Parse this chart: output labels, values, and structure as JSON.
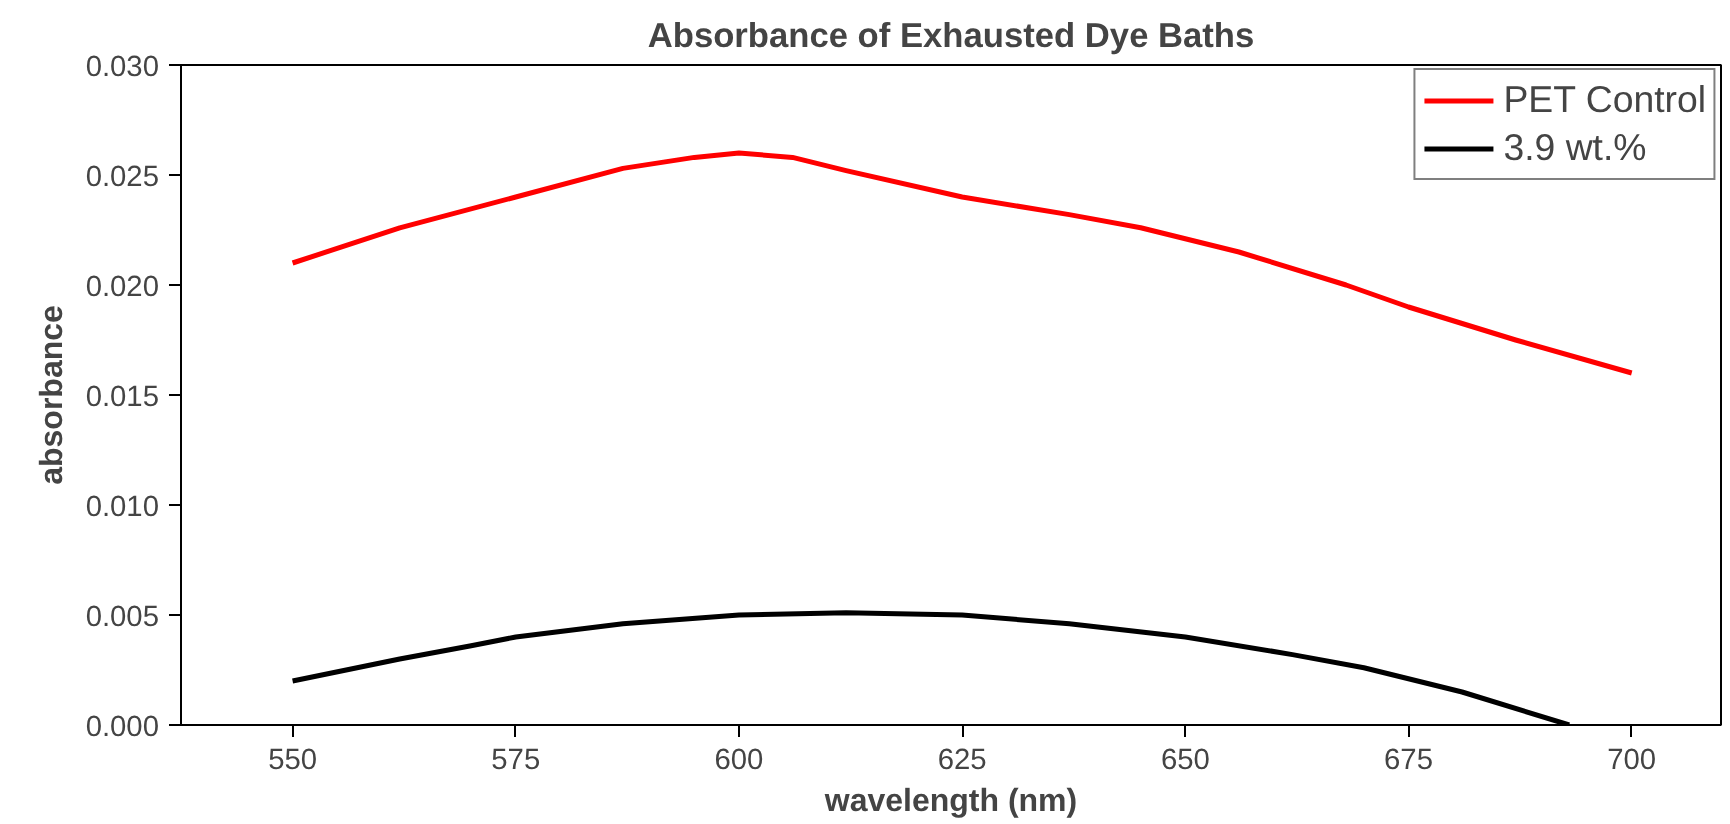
{
  "chart_data": {
    "type": "line",
    "title": "Absorbance of Exhausted Dye Baths",
    "xlabel": "wavelength (nm)",
    "ylabel": "absorbance",
    "xlim": [
      537.5,
      710
    ],
    "xticks": [
      550,
      575,
      600,
      625,
      650,
      675,
      700
    ],
    "ylim": [
      0,
      0.03
    ],
    "yticks": [
      {
        "value": 0,
        "label": "0.000"
      },
      {
        "value": 0.005,
        "label": "0.005"
      },
      {
        "value": 0.01,
        "label": "0.010"
      },
      {
        "value": 0.015,
        "label": "0.015"
      },
      {
        "value": 0.02,
        "label": "0.020"
      },
      {
        "value": 0.025,
        "label": "0.025"
      },
      {
        "value": 0.03,
        "label": "0.030"
      }
    ],
    "grid": false,
    "legend": "top right",
    "marker": "none",
    "line_style": "solid",
    "series": [
      {
        "name": "PET Control",
        "color": "#ff0000",
        "x": [
          550,
          562,
          575,
          587,
          595,
          600,
          606,
          612,
          625,
          637,
          645,
          656,
          668,
          675,
          687,
          700
        ],
        "values": [
          0.021,
          0.0226,
          0.024,
          0.0253,
          0.0258,
          0.026,
          0.0258,
          0.0252,
          0.024,
          0.0232,
          0.0226,
          0.0215,
          0.02,
          0.019,
          0.0175,
          0.016
        ]
      },
      {
        "name": "3.9 wt.%",
        "color": "#000000",
        "x": [
          550,
          562,
          570,
          575,
          587,
          600,
          612,
          625,
          637,
          650,
          662,
          670,
          681,
          693
        ],
        "values": [
          0.002,
          0.003,
          0.0036,
          0.004,
          0.0046,
          0.005,
          0.0051,
          0.005,
          0.0046,
          0.004,
          0.0032,
          0.0026,
          0.0015,
          0
        ]
      }
    ]
  }
}
